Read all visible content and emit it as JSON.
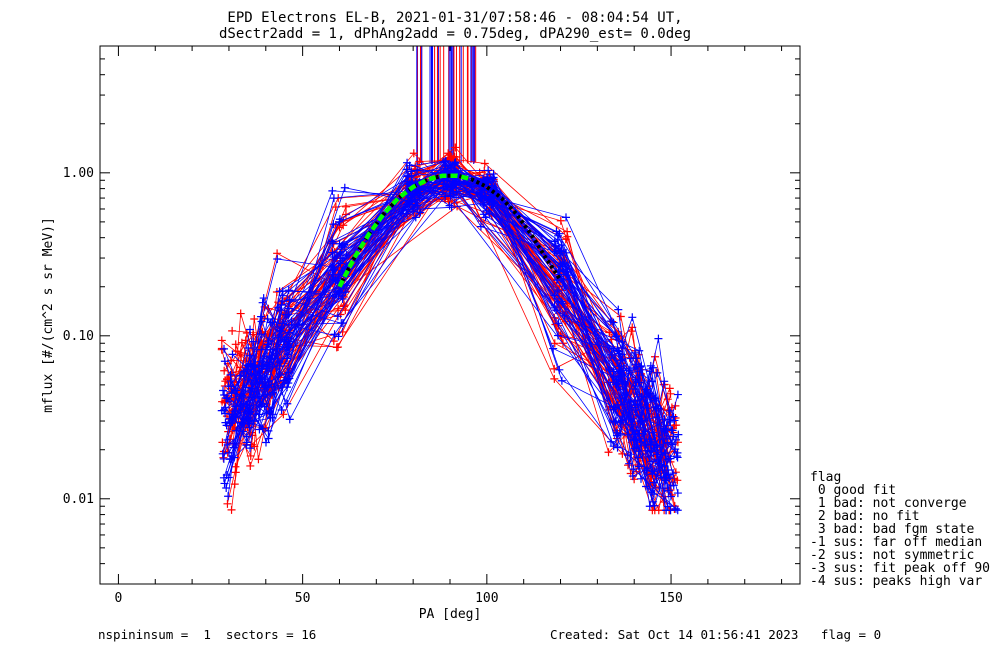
{
  "title_line1": "EPD Electrons EL-B, 2021-01-31/07:58:46 - 08:04:54 UT,",
  "title_line2": "dSectr2add = 1, dPhAng2add = 0.75deg, dPA290_est=   0.0deg",
  "footer": {
    "left": "nspininsum =  1  sectors = 16",
    "right": "Created: Sat Oct 14 01:56:41 2023   flag = 0"
  },
  "legend": {
    "title": "flag",
    "items": [
      " 0 good fit",
      " 1 bad: not converge",
      " 2 bad: no fit",
      " 3 bad: bad fgm state",
      "-1 sus: far off median",
      "-2 sus: not symmetric",
      "-3 sus: fit peak off 90",
      "-4 sus: peaks high var"
    ]
  },
  "colors": {
    "red": "#ff0000",
    "blue": "#0000ff",
    "green": "#00ff00",
    "black": "#000000"
  },
  "chart_data": {
    "type": "line",
    "xlabel": "PA [deg]",
    "ylabel": "mflux [#/(cm^2 s sr MeV)]",
    "xlim": [
      -5,
      185
    ],
    "ylim": [
      0.003,
      6
    ],
    "yscale": "log",
    "xticks": [
      0,
      50,
      100,
      150
    ],
    "yticks": [
      0.01,
      0.1,
      1.0
    ],
    "ytick_labels": [
      "0.01",
      "0.10",
      "1.00"
    ],
    "pa_bins": [
      30,
      35,
      40,
      45,
      60,
      80,
      90,
      100,
      120,
      135,
      140,
      145,
      150
    ],
    "median_profile": [
      0.03,
      0.04,
      0.06,
      0.09,
      0.25,
      0.8,
      0.92,
      0.75,
      0.2,
      0.05,
      0.035,
      0.025,
      0.018
    ],
    "fit_curve": {
      "x": [
        60,
        64,
        68,
        72,
        76,
        80,
        84,
        88,
        92,
        96,
        100,
        104,
        108,
        112,
        116,
        120
      ],
      "y": [
        0.2,
        0.3,
        0.42,
        0.56,
        0.7,
        0.82,
        0.91,
        0.96,
        0.96,
        0.91,
        0.82,
        0.7,
        0.56,
        0.42,
        0.3,
        0.22
      ]
    },
    "series_red": {
      "color": "red",
      "curves": 55
    },
    "series_blue": {
      "color": "blue",
      "curves": 55
    }
  }
}
